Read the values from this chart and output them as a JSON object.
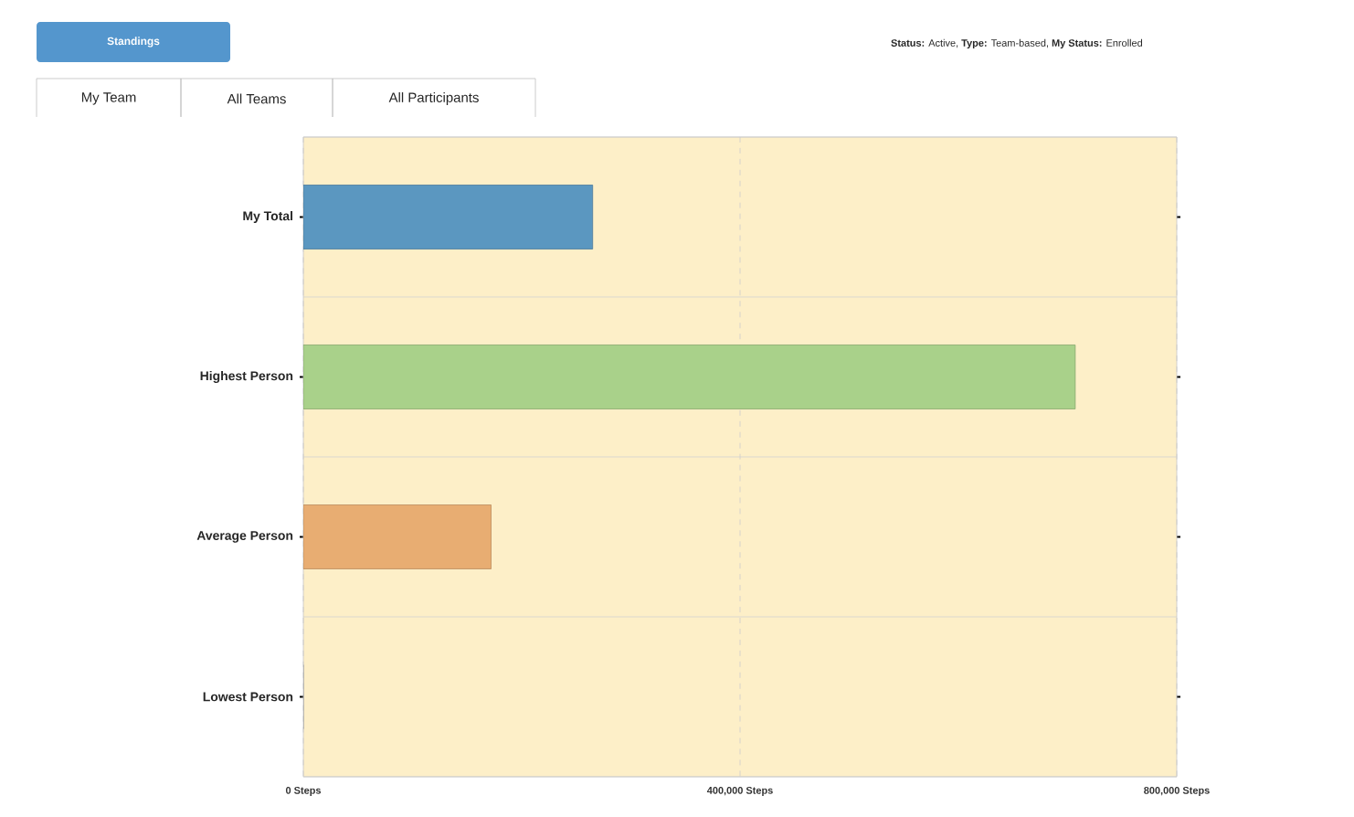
{
  "chart_data": {
    "type": "bar",
    "orientation": "horizontal",
    "title": "Standings",
    "annotations": [
      "My Team",
      "All Teams",
      "All Participants",
      "**Status:** Active, **Type:** Team-based, **My Status:** Enrolled"
    ],
    "categories": [
      "My Total",
      "Highest Person",
      "Average Person",
      "Lowest Person"
    ],
    "values": [
      265000,
      707000,
      172000,
      0
    ],
    "colors": [
      "#5b97c0",
      "#a9d18a",
      "#e8ad72",
      "#cccccc"
    ],
    "xlim": [
      0,
      800000
    ],
    "xticks": [
      {
        "value": 0,
        "label": "0 Steps"
      },
      {
        "value": 400000,
        "label": "400,000 Steps"
      },
      {
        "value": 800000,
        "label": "800,000 Steps"
      }
    ],
    "grid": true
  }
}
